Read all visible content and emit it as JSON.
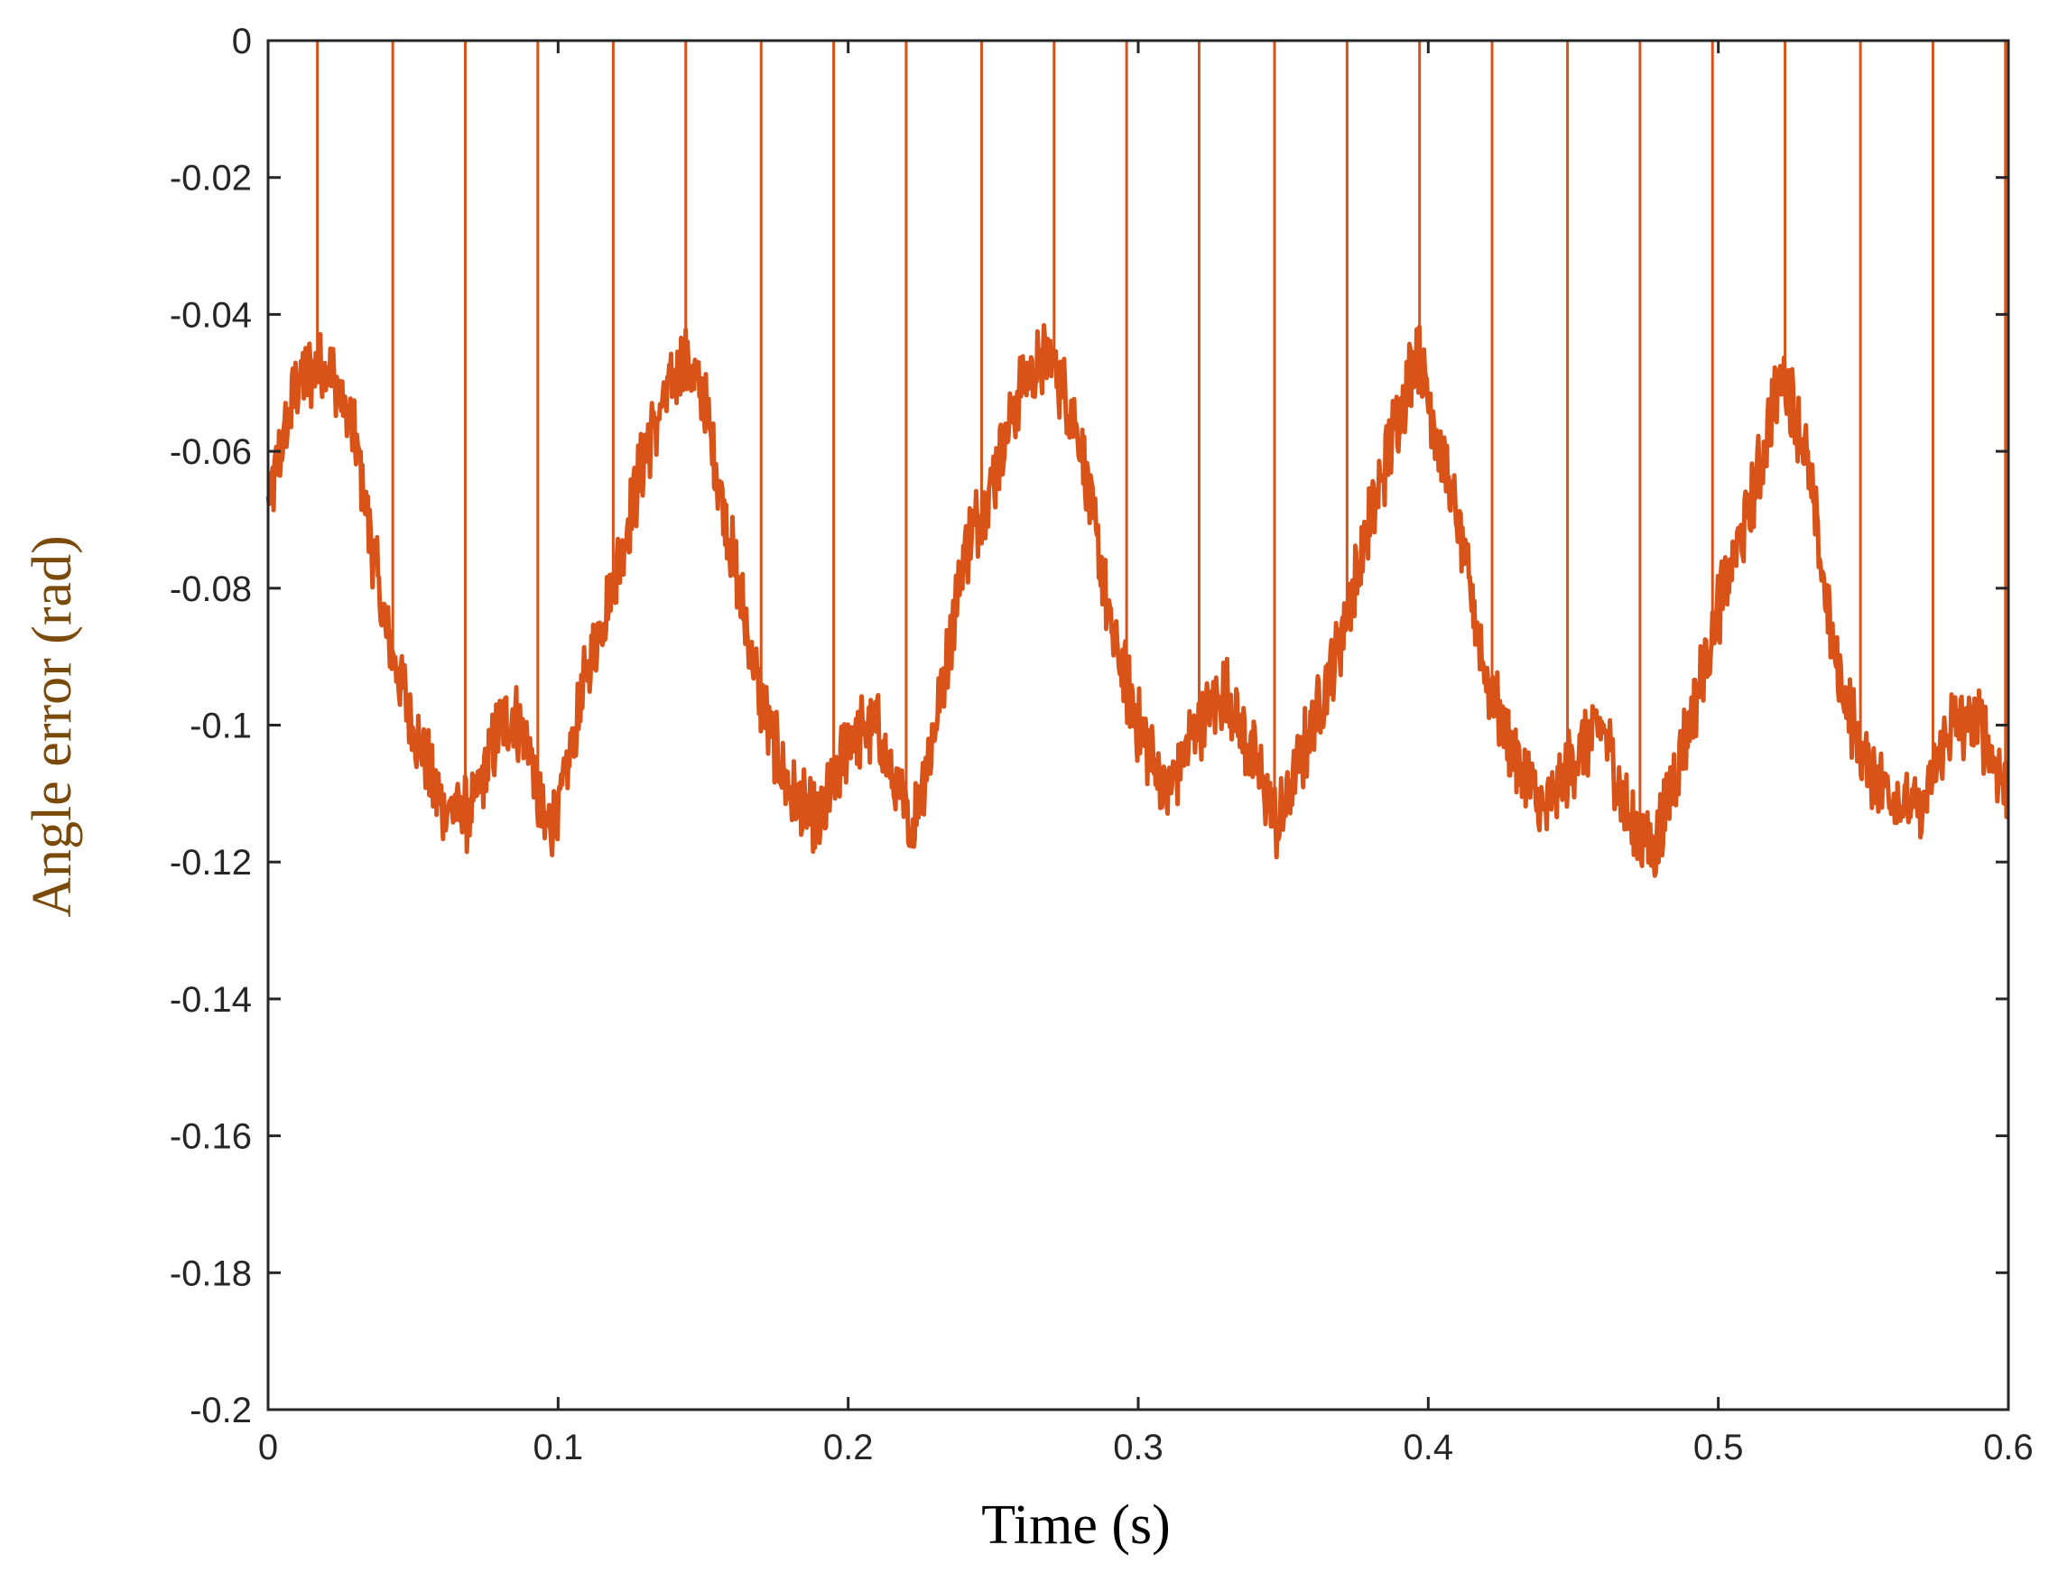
{
  "chart_data": {
    "type": "line",
    "title": "",
    "xlabel": "Time (s)",
    "ylabel": "Angle error (rad)",
    "xlim": [
      0,
      0.6
    ],
    "ylim": [
      -0.2,
      0
    ],
    "xticks": [
      "0",
      "0.1",
      "0.2",
      "0.3",
      "0.4",
      "0.5",
      "0.6"
    ],
    "yticks": [
      "0",
      "-0.02",
      "-0.04",
      "-0.06",
      "-0.08",
      "-0.1",
      "-0.12",
      "-0.14",
      "-0.16",
      "-0.18",
      "-0.2"
    ],
    "grid": false,
    "legend": "none",
    "colors": {
      "series": "#D95319",
      "axis": "#262626",
      "xlabel": "#000000",
      "ylabel": "#7A4A0A"
    },
    "series": [
      {
        "x": [
          0,
          0.01,
          0.02,
          0.03,
          0.04,
          0.05,
          0.06,
          0.07,
          0.08,
          0.085,
          0.09,
          0.095,
          0.1,
          0.11,
          0.12,
          0.13,
          0.143,
          0.15,
          0.16,
          0.17,
          0.18,
          0.19,
          0.2,
          0.21,
          0.215,
          0.222,
          0.23,
          0.24,
          0.25,
          0.26,
          0.27,
          0.28,
          0.29,
          0.3,
          0.31,
          0.32,
          0.33,
          0.34,
          0.348,
          0.36,
          0.37,
          0.38,
          0.396,
          0.41,
          0.42,
          0.43,
          0.44,
          0.45,
          0.46,
          0.47,
          0.478,
          0.49,
          0.5,
          0.51,
          0.522,
          0.53,
          0.54,
          0.55,
          0.56,
          0.57,
          0.58,
          0.59,
          0.6
        ],
        "y": [
          -0.068,
          -0.05,
          -0.047,
          -0.058,
          -0.085,
          -0.1,
          -0.112,
          -0.113,
          -0.1,
          -0.099,
          -0.103,
          -0.115,
          -0.113,
          -0.092,
          -0.078,
          -0.06,
          -0.046,
          -0.052,
          -0.075,
          -0.097,
          -0.11,
          -0.115,
          -0.102,
          -0.1,
          -0.108,
          -0.115,
          -0.1,
          -0.075,
          -0.064,
          -0.05,
          -0.046,
          -0.058,
          -0.085,
          -0.1,
          -0.11,
          -0.1,
          -0.095,
          -0.105,
          -0.115,
          -0.1,
          -0.087,
          -0.07,
          -0.045,
          -0.07,
          -0.093,
          -0.105,
          -0.113,
          -0.105,
          -0.1,
          -0.115,
          -0.118,
          -0.1,
          -0.083,
          -0.07,
          -0.048,
          -0.06,
          -0.09,
          -0.105,
          -0.11,
          -0.113,
          -0.1,
          -0.1,
          -0.11
        ]
      }
    ],
    "spikes_x": [
      0.017,
      0.043,
      0.068,
      0.093,
      0.119,
      0.144,
      0.17,
      0.195,
      0.22,
      0.246,
      0.271,
      0.296,
      0.321,
      0.347,
      0.372,
      0.397,
      0.422,
      0.448,
      0.473,
      0.498,
      0.523,
      0.549,
      0.574,
      0.599
    ]
  }
}
